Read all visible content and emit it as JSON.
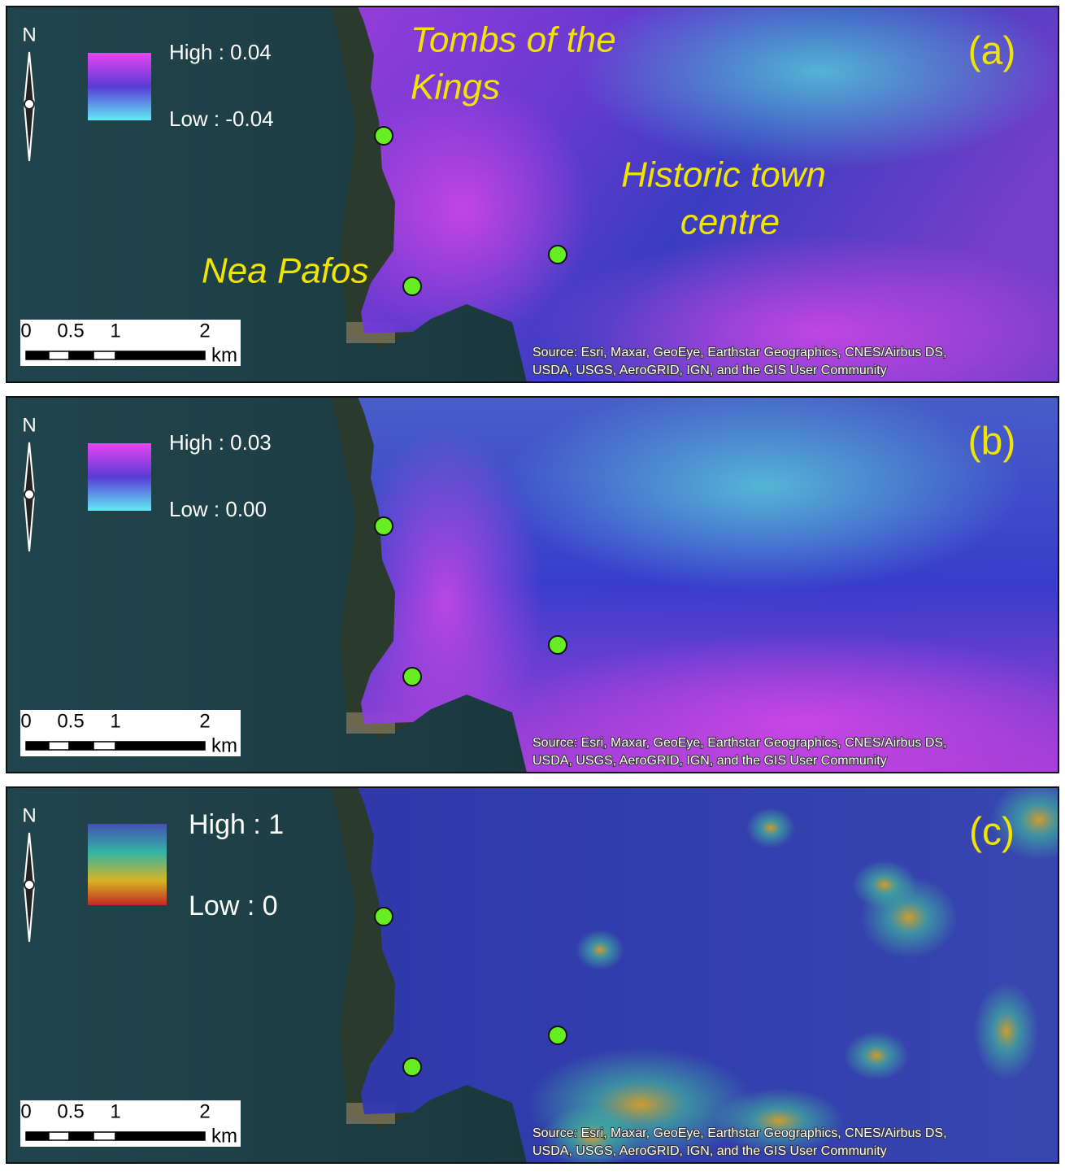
{
  "north_label": "N",
  "scale_bar": {
    "labels": [
      "0",
      "0.5",
      "1",
      "2"
    ],
    "unit": "km"
  },
  "source": [
    "Source: Esri, Maxar, GeoEye, Earthstar Geographics, CNES/Airbus DS,",
    "USDA, USGS, AeroGRID, IGN, and the GIS User Community"
  ],
  "panels": [
    {
      "label": "(a)",
      "legend": {
        "high": "High : 0.04",
        "low": "Low : -0.04"
      },
      "annotations": [
        "Tombs of the",
        "Kings",
        "Historic town",
        "centre",
        "Nea Pafos"
      ]
    },
    {
      "label": "(b)",
      "legend": {
        "high": "High : 0.03",
        "low": "Low : 0.00"
      }
    },
    {
      "label": "(c)",
      "legend": {
        "high": "High : 1",
        "low": "Low : 0"
      }
    }
  ]
}
